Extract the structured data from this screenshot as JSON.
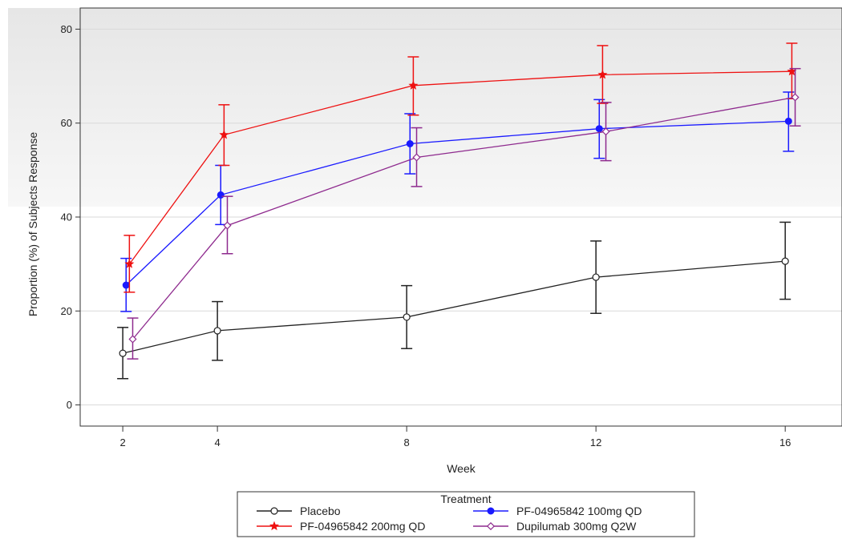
{
  "chart_data": {
    "type": "line",
    "xlabel": "Week",
    "ylabel": "Proportion (%) of Subjects Response",
    "xlim": [
      1.1,
      17.2
    ],
    "ylim": [
      -4.5,
      84.5
    ],
    "x_ticks": [
      2,
      4,
      8,
      12,
      16
    ],
    "y_ticks": [
      0,
      20,
      40,
      60,
      80
    ],
    "legend": {
      "title": "Treatment",
      "placement": "bottom-center"
    },
    "series": [
      {
        "name": "Placebo",
        "color": "#222222",
        "marker": "open-circle",
        "x": [
          2,
          4,
          8,
          12,
          16
        ],
        "offset": 0,
        "y": [
          11,
          15.8,
          18.7,
          27.2,
          30.6
        ],
        "lower": [
          5.6,
          9.5,
          12,
          19.5,
          22.5
        ],
        "upper": [
          16.5,
          22,
          25.4,
          34.9,
          38.9
        ]
      },
      {
        "name": "PF-04965842 100mg QD",
        "color": "#1a1aff",
        "marker": "filled-circle",
        "x": [
          2,
          4,
          8,
          12,
          16
        ],
        "offset": 0.55,
        "y": [
          25.5,
          44.7,
          55.6,
          58.8,
          60.4
        ],
        "lower": [
          19.9,
          38.4,
          49.2,
          52.5,
          54
        ],
        "upper": [
          31.2,
          51,
          62,
          65,
          66.6
        ]
      },
      {
        "name": "PF-04965842 200mg QD",
        "color": "#ee1111",
        "marker": "star",
        "x": [
          2,
          4,
          8,
          12,
          16
        ],
        "offset": 1.1,
        "y": [
          30,
          57.5,
          68,
          70.3,
          71
        ],
        "lower": [
          24,
          51,
          61.7,
          64.2,
          65.2
        ],
        "upper": [
          36.1,
          63.9,
          74.1,
          76.5,
          77
        ]
      },
      {
        "name": "Dupilumab 300mg Q2W",
        "color": "#8e2a8e",
        "marker": "open-diamond",
        "x": [
          2,
          4,
          8,
          12,
          16
        ],
        "offset": 1.65,
        "y": [
          14,
          38.2,
          52.7,
          58.2,
          65.5
        ],
        "lower": [
          9.8,
          32.2,
          46.5,
          52,
          59.4
        ],
        "upper": [
          18.5,
          44.4,
          59,
          64.4,
          71.6
        ]
      }
    ]
  }
}
